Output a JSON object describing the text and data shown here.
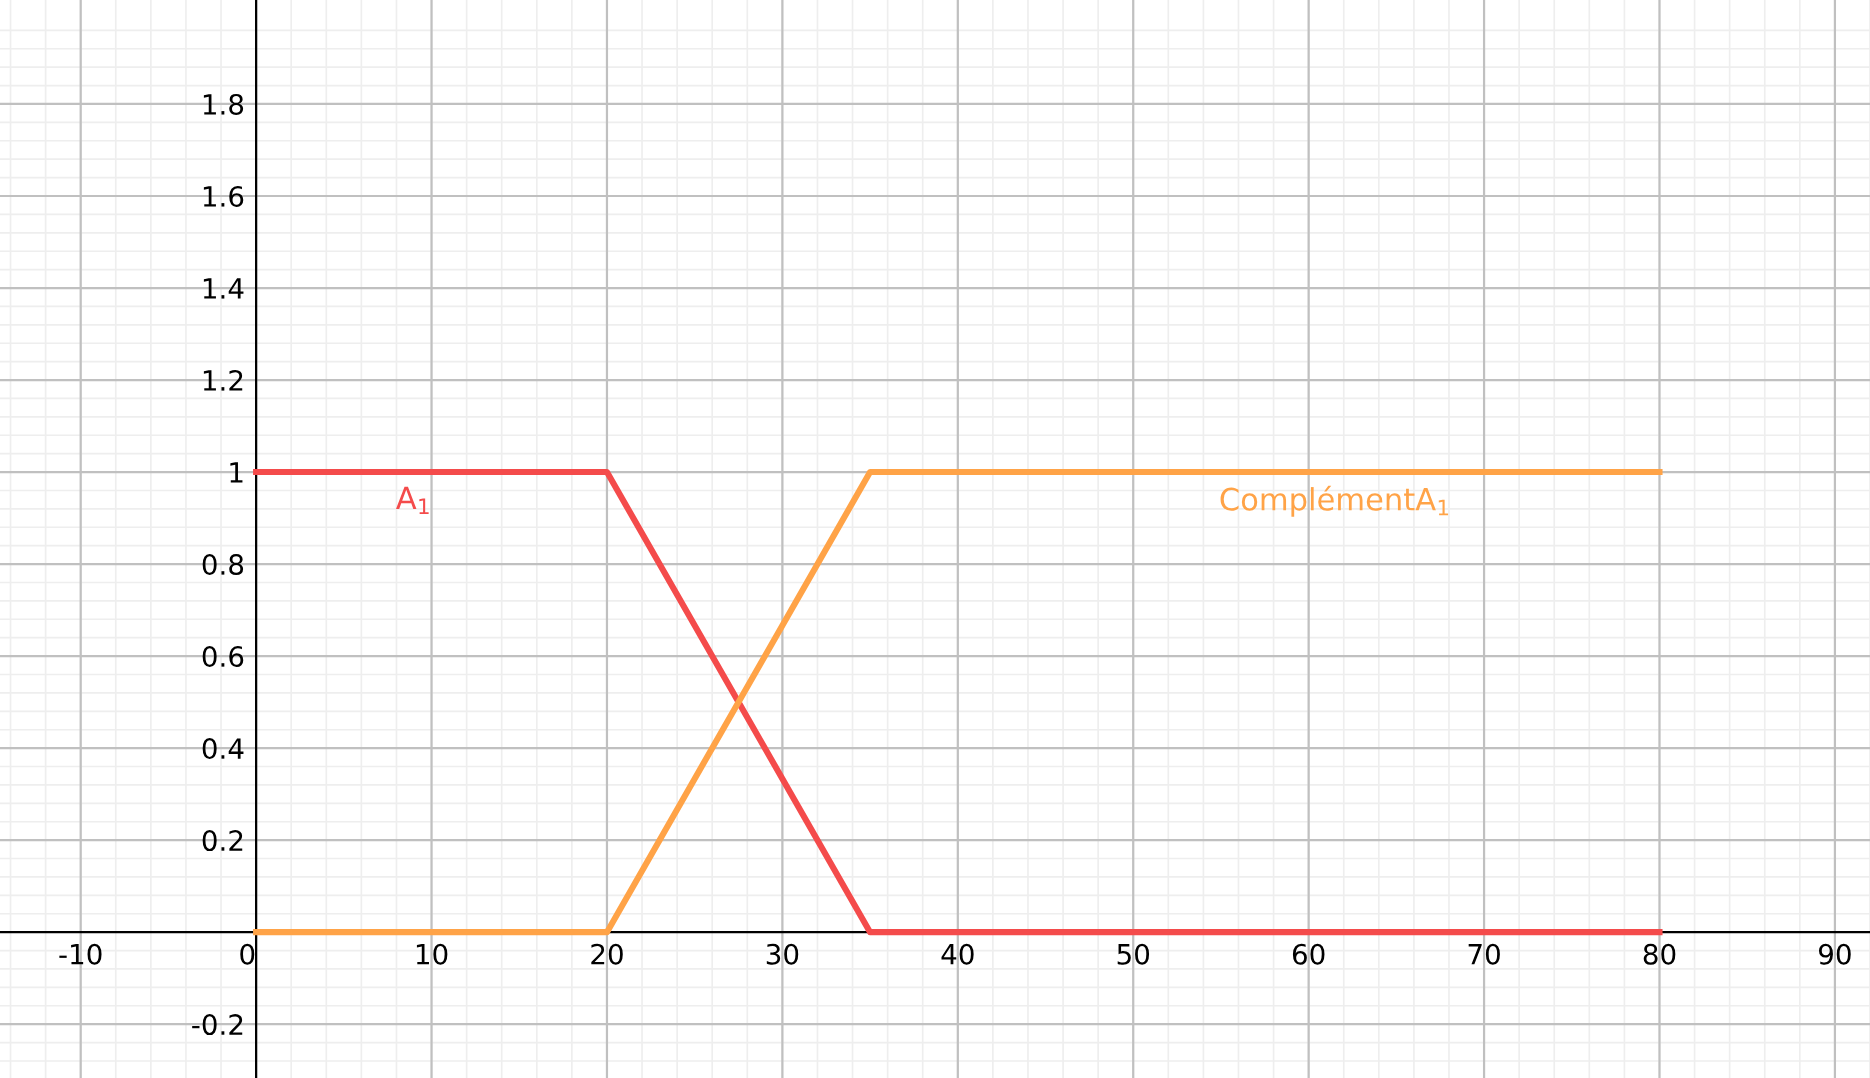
{
  "chart_data": {
    "type": "line",
    "x": [
      0,
      20,
      35,
      80
    ],
    "series": [
      {
        "name": "A$_{1}$",
        "color": "#f44b4b",
        "values": [
          1,
          1,
          0,
          0
        ]
      },
      {
        "name": "ComplémentA$_{1}$",
        "color": "#ffa347",
        "values": [
          0,
          0,
          1,
          1
        ]
      }
    ],
    "xlim": [
      -14.6,
      92
    ],
    "ylim": [
      -0.317,
      2.026
    ],
    "xticks": [
      -10,
      0,
      10,
      20,
      30,
      40,
      50,
      60,
      70,
      80,
      90
    ],
    "yticks": [
      -0.2,
      0.2,
      0.4,
      0.6,
      0.8,
      1,
      1.2,
      1.4,
      1.6,
      1.8
    ],
    "grid": true,
    "legend": false,
    "marker": "none",
    "line_style": "solid"
  }
}
